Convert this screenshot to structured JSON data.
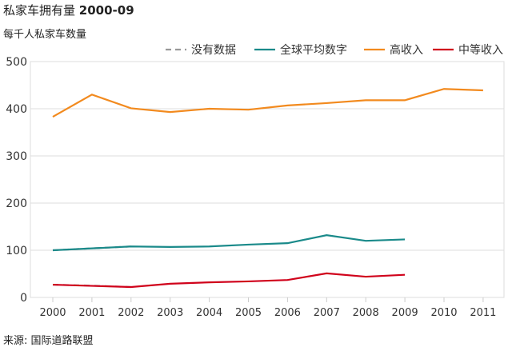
{
  "chart_data": {
    "type": "line",
    "title": "私家车拥有量",
    "title_bold": "2000-09",
    "subtitle": "每千人私家车数量",
    "source": "来源: 国际道路联盟",
    "x": [
      "2000",
      "2001",
      "2002",
      "2003",
      "2004",
      "2005",
      "2006",
      "2007",
      "2008",
      "2009",
      "2010",
      "2011"
    ],
    "yticks": [
      "0",
      "100",
      "200",
      "300",
      "400",
      "500"
    ],
    "ylim": [
      0,
      500
    ],
    "grid": true,
    "legend_position": "top-right",
    "series": [
      {
        "name": "没有数据",
        "color": "#999999",
        "dashed": true,
        "segments": [
          {
            "x": [
              "2000",
              "2001",
              "2002"
            ],
            "values": [
              100,
              104,
              108
            ]
          },
          {
            "x": [
              "2000",
              "2001",
              "2002"
            ],
            "values": [
              27,
              25,
              22
            ]
          }
        ]
      },
      {
        "name": "全球平均数字",
        "color": "#1a8a8a",
        "x": [
          "2000",
          "2002",
          "2003",
          "2004",
          "2005",
          "2006",
          "2007",
          "2008",
          "2009"
        ],
        "values": [
          100,
          108,
          107,
          108,
          112,
          115,
          132,
          120,
          123
        ]
      },
      {
        "name": "高收入",
        "color": "#f28a1e",
        "x": [
          "2000",
          "2001",
          "2002",
          "2003",
          "2004",
          "2005",
          "2006",
          "2007",
          "2008",
          "2009",
          "2010",
          "2011"
        ],
        "values": [
          383,
          430,
          401,
          393,
          400,
          398,
          407,
          412,
          418,
          418,
          442,
          439
        ]
      },
      {
        "name": "中等收入",
        "color": "#d0021b",
        "x": [
          "2000",
          "2002",
          "2003",
          "2004",
          "2005",
          "2006",
          "2007",
          "2008",
          "2009"
        ],
        "values": [
          27,
          22,
          29,
          32,
          34,
          37,
          51,
          44,
          48
        ]
      }
    ]
  }
}
